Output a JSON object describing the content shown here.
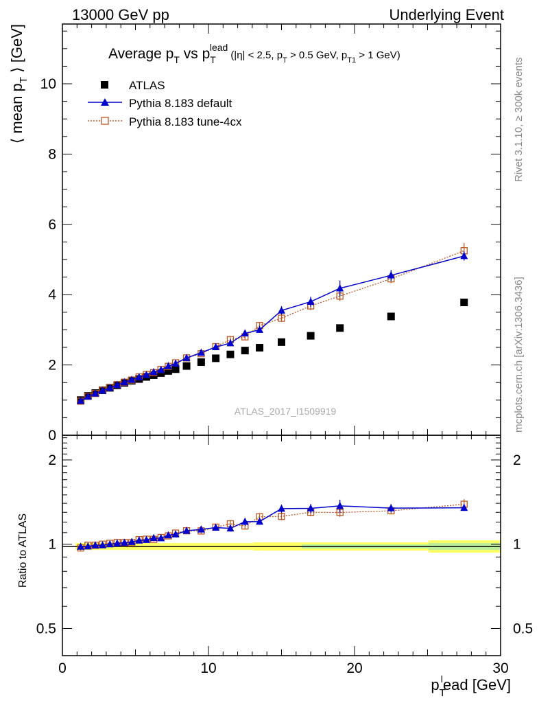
{
  "header": {
    "left": "13000 GeV pp",
    "right": "Underlying Event"
  },
  "side_labels": {
    "rivet": "Rivet 3.1.10, ≥ 300k events",
    "mcplots": "mcplots.cern.ch [arXiv:1306.3436]"
  },
  "watermark": "ATLAS_2017_I1509919",
  "title": {
    "main_a": "Average p",
    "main_a_sub": "T",
    "main_vs": " vs p",
    "main_vs_sub": "T",
    "main_vs_sup": "lead",
    "cuts": "(|η| < 2.5, p",
    "cuts_sub1": "T",
    "cuts_mid": " > 0.5 GeV, p",
    "cuts_sub2": "T1",
    "cuts_end": " > 1 GeV)"
  },
  "axes": {
    "ylabel_main": "⟨ mean p",
    "ylabel_main_sub": "T",
    "ylabel_main_end": " ⟩ [GeV]",
    "ylabel_ratio": "Ratio to ATLAS",
    "xlabel_a": "p",
    "xlabel_sub": "T",
    "xlabel_sup": "l",
    "xlabel_b": "ead [GeV]",
    "main_yticks": [
      "0",
      "2",
      "4",
      "6",
      "8",
      "10"
    ],
    "ratio_yticks": [
      "0.5",
      "1",
      "2"
    ],
    "xticks": [
      "0",
      "10",
      "20",
      "30"
    ]
  },
  "legend": [
    {
      "label": "ATLAS",
      "color": "#000000",
      "marker": "filled-square"
    },
    {
      "label": "Pythia 8.183 default",
      "color": "#0000cc",
      "marker": "filled-triangle"
    },
    {
      "label": "Pythia 8.183 tune-4cx",
      "color": "#bb5522",
      "marker": "open-square"
    }
  ],
  "chart_data": {
    "type": "scatter",
    "xlim": [
      0,
      30
    ],
    "ylim": [
      0,
      11.7
    ],
    "ratio_ylim": [
      0.4,
      2.45
    ],
    "ratio_scale": "log",
    "x": [
      1.25,
      1.75,
      2.25,
      2.75,
      3.25,
      3.75,
      4.25,
      4.75,
      5.25,
      5.75,
      6.25,
      6.75,
      7.25,
      7.75,
      8.5,
      9.5,
      10.5,
      11.5,
      12.5,
      13.5,
      15,
      17,
      19,
      22.5,
      27.5
    ],
    "series": [
      {
        "name": "ATLAS",
        "values": [
          1.0,
          1.12,
          1.2,
          1.28,
          1.35,
          1.42,
          1.49,
          1.55,
          1.6,
          1.66,
          1.71,
          1.77,
          1.83,
          1.88,
          1.97,
          2.08,
          2.19,
          2.3,
          2.41,
          2.49,
          2.65,
          2.83,
          3.05,
          3.38,
          3.78
        ]
      },
      {
        "name": "Pythia 8.183 default",
        "values": [
          0.98,
          1.1,
          1.19,
          1.27,
          1.35,
          1.43,
          1.51,
          1.58,
          1.65,
          1.72,
          1.8,
          1.86,
          1.97,
          2.04,
          2.2,
          2.35,
          2.51,
          2.62,
          2.9,
          3.0,
          3.55,
          3.8,
          4.18,
          4.55,
          5.1
        ],
        "errors": [
          0.02,
          0.02,
          0.02,
          0.02,
          0.02,
          0.02,
          0.02,
          0.02,
          0.02,
          0.02,
          0.03,
          0.03,
          0.03,
          0.03,
          0.04,
          0.05,
          0.06,
          0.07,
          0.09,
          0.08,
          0.12,
          0.14,
          0.22,
          0.15,
          0.13
        ]
      },
      {
        "name": "Pythia 8.183 tune-4cx",
        "values": [
          0.97,
          1.11,
          1.19,
          1.28,
          1.36,
          1.44,
          1.51,
          1.57,
          1.66,
          1.73,
          1.78,
          1.87,
          1.96,
          2.06,
          2.2,
          2.32,
          2.52,
          2.72,
          2.8,
          3.12,
          3.33,
          3.68,
          3.96,
          4.45,
          5.25
        ],
        "errors": [
          0.02,
          0.02,
          0.02,
          0.02,
          0.02,
          0.02,
          0.02,
          0.02,
          0.02,
          0.02,
          0.03,
          0.03,
          0.03,
          0.03,
          0.04,
          0.05,
          0.06,
          0.07,
          0.08,
          0.08,
          0.1,
          0.12,
          0.14,
          0.12,
          0.22
        ]
      }
    ]
  }
}
